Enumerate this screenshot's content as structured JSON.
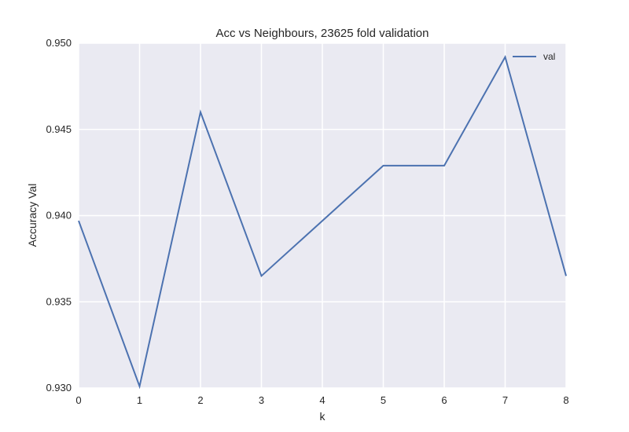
{
  "chart_data": {
    "type": "line",
    "title": "Acc vs Neighbours, 23625 fold validation",
    "xlabel": "k",
    "ylabel": "Accuracy Val",
    "x": [
      0,
      1,
      2,
      3,
      4,
      5,
      6,
      7,
      8
    ],
    "xticks": [
      "0",
      "1",
      "2",
      "3",
      "4",
      "5",
      "6",
      "7",
      "8"
    ],
    "yticks": [
      "0.930",
      "0.935",
      "0.940",
      "0.945",
      "0.950"
    ],
    "ylim": [
      0.93,
      0.95
    ],
    "xlim": [
      0,
      8
    ],
    "grid": true,
    "legend_position": "top-right",
    "series": [
      {
        "name": "val",
        "color": "#4c72b0",
        "values": [
          0.9397,
          0.9301,
          0.946,
          0.9365,
          0.9397,
          0.9429,
          0.9429,
          0.9492,
          0.9365
        ]
      }
    ],
    "colors": {
      "plot_background": "#eaeaf2",
      "grid": "#ffffff"
    }
  }
}
